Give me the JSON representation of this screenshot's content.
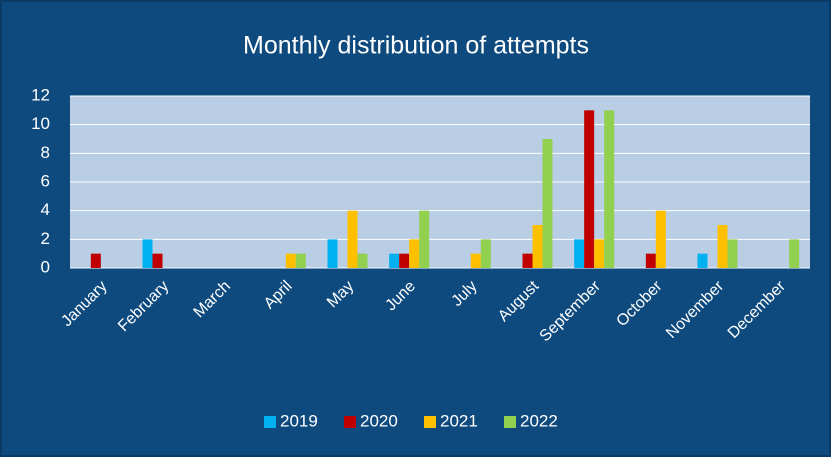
{
  "chart_data": {
    "type": "bar",
    "title": "Monthly distribution of attempts",
    "categories": [
      "January",
      "February",
      "March",
      "April",
      "May",
      "June",
      "July",
      "August",
      "September",
      "October",
      "November",
      "December"
    ],
    "series": [
      {
        "name": "2019",
        "color": "#00b0f0",
        "values": [
          0,
          2,
          0,
          0,
          2,
          1,
          0,
          0,
          2,
          0,
          1,
          0
        ]
      },
      {
        "name": "2020",
        "color": "#c00000",
        "values": [
          1,
          1,
          0,
          0,
          0,
          1,
          0,
          1,
          11,
          1,
          0,
          0
        ]
      },
      {
        "name": "2021",
        "color": "#ffc000",
        "values": [
          0,
          0,
          0,
          1,
          4,
          2,
          1,
          3,
          2,
          4,
          3,
          0
        ]
      },
      {
        "name": "2022",
        "color": "#92d050",
        "values": [
          0,
          0,
          0,
          1,
          1,
          4,
          2,
          9,
          11,
          0,
          2,
          2
        ]
      }
    ],
    "ylim": [
      0,
      12
    ],
    "yticks": [
      0,
      2,
      4,
      6,
      8,
      10,
      12
    ],
    "grid": true,
    "legend": "bottom"
  }
}
